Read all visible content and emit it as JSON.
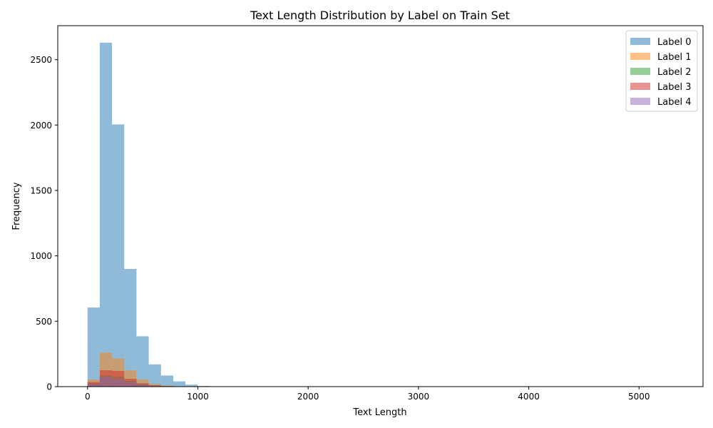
{
  "chart_data": {
    "type": "bar",
    "subtype": "overlaid-histogram",
    "title": "Text Length Distribution by Label on Train Set",
    "xlabel": "Text Length",
    "ylabel": "Frequency",
    "xlim": [
      -270,
      5580
    ],
    "ylim": [
      0,
      2760
    ],
    "x_ticks": [
      0,
      1000,
      2000,
      3000,
      4000,
      5000
    ],
    "y_ticks": [
      0,
      500,
      1000,
      1500,
      2000,
      2500
    ],
    "grid": false,
    "legend_position": "top-right",
    "bin_edges": [
      0,
      111,
      222,
      333,
      444,
      555,
      666,
      777,
      888,
      999,
      1110,
      1221
    ],
    "series": [
      {
        "name": "Label 0",
        "color": "#1f77b4",
        "values": [
          605,
          2630,
          2005,
          900,
          385,
          170,
          85,
          40,
          15,
          5,
          2
        ]
      },
      {
        "name": "Label 1",
        "color": "#ff7f0e",
        "values": [
          55,
          260,
          215,
          125,
          55,
          20,
          8,
          3,
          1,
          0,
          0
        ]
      },
      {
        "name": "Label 2",
        "color": "#2ca02c",
        "values": [
          25,
          85,
          75,
          45,
          20,
          8,
          3,
          1,
          0,
          0,
          0
        ]
      },
      {
        "name": "Label 3",
        "color": "#d62728",
        "values": [
          35,
          125,
          120,
          60,
          25,
          10,
          4,
          1,
          0,
          0,
          0
        ]
      },
      {
        "name": "Label 4",
        "color": "#9467bd",
        "values": [
          20,
          75,
          60,
          35,
          15,
          6,
          2,
          1,
          0,
          0,
          0
        ]
      }
    ]
  }
}
